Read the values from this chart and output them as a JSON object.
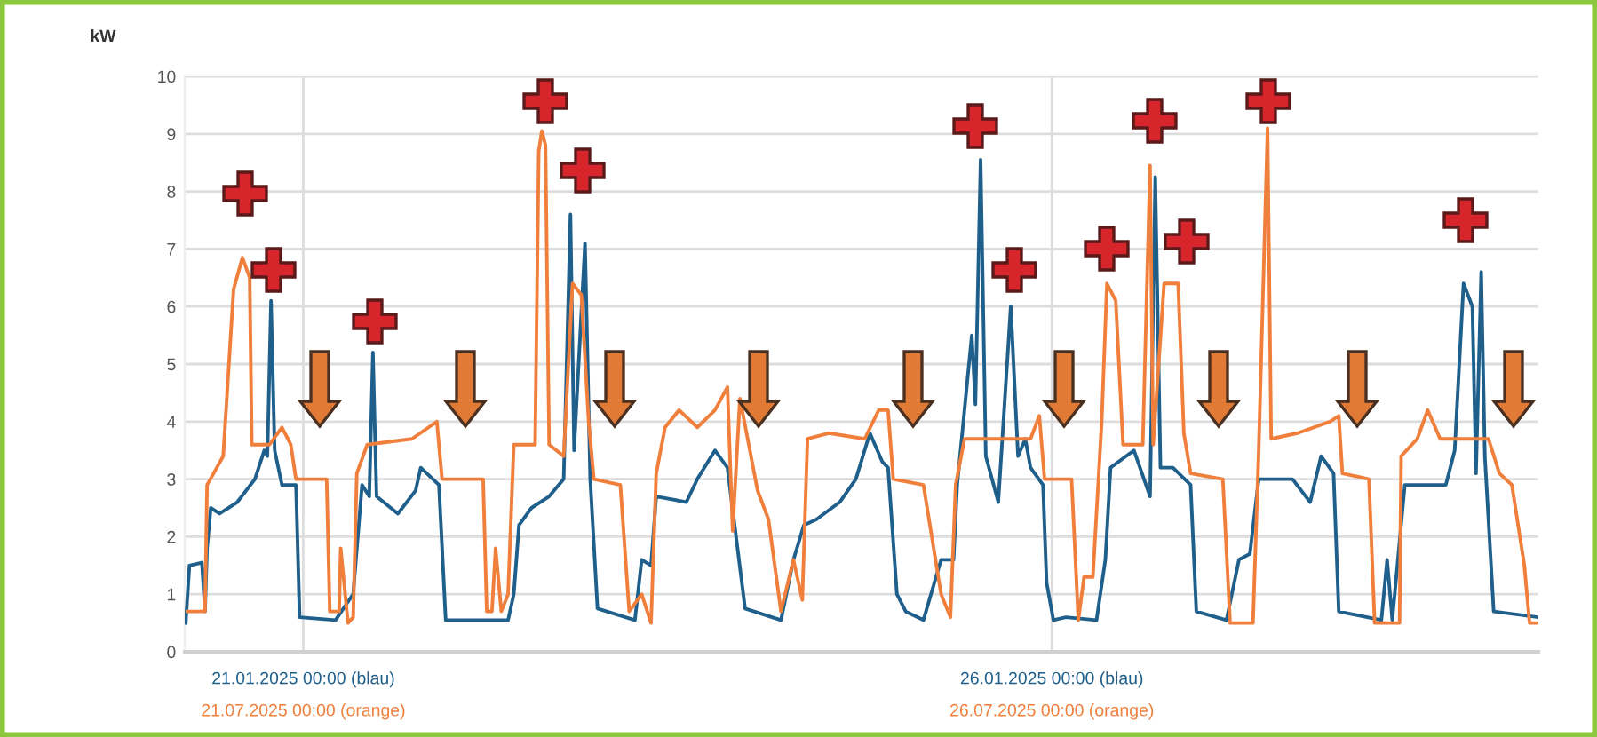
{
  "chart_data": {
    "type": "line",
    "ylabel": "kW",
    "ylim": [
      0,
      10
    ],
    "yticks": [
      0,
      1,
      2,
      3,
      4,
      5,
      6,
      7,
      8,
      9,
      10
    ],
    "xlim": [
      "2025-01-20T05:00",
      "2025-01-29T06:00"
    ],
    "xticks": [
      {
        "value": "2025-01-21T00:00",
        "label": "21.01.2025 00:00 (blau)"
      },
      {
        "value": "2025-01-26T00:00",
        "label": "26.01.2025 00:00 (blau)"
      }
    ],
    "annotations": [
      "21.07.2025 00:00 (orange)",
      "26.07.2025 00:00 (orange)"
    ],
    "grid": true,
    "legend": false,
    "line_style": "solid",
    "marker": "none",
    "series": [
      {
        "color": "#1f5f8b",
        "x": [
          "2025-01-20T05:10",
          "2025-01-20T05:45",
          "2025-01-20T07:45",
          "2025-01-20T08:15",
          "2025-01-20T08:35",
          "2025-01-20T09:10",
          "2025-01-20T10:35",
          "2025-01-20T13:25",
          "2025-01-20T16:15",
          "2025-01-20T17:45",
          "2025-01-20T18:15",
          "2025-01-20T18:50",
          "2025-01-20T19:25",
          "2025-01-20T20:35",
          "2025-01-20T22:50",
          "2025-01-20T23:25",
          "2025-01-21T05:10",
          "2025-01-21T08:00",
          "2025-01-21T09:25",
          "2025-01-21T10:35",
          "2025-01-21T11:10",
          "2025-01-21T11:45",
          "2025-01-21T15:10",
          "2025-01-21T18:00",
          "2025-01-21T18:50",
          "2025-01-21T21:45",
          "2025-01-21T22:50",
          "2025-01-22T08:50",
          "2025-01-22T09:45",
          "2025-01-22T10:35",
          "2025-01-22T12:35",
          "2025-01-22T15:25",
          "2025-01-22T17:45",
          "2025-01-22T18:50",
          "2025-01-22T19:25",
          "2025-01-22T21:10",
          "2025-01-22T22:00",
          "2025-01-22T23:10",
          "2025-01-23T05:10",
          "2025-01-23T06:15",
          "2025-01-23T07:45",
          "2025-01-23T08:35",
          "2025-01-23T13:25",
          "2025-01-23T15:10",
          "2025-01-23T18:00",
          "2025-01-23T20:00",
          "2025-01-23T22:50",
          "2025-01-24T04:35",
          "2025-01-24T06:35",
          "2025-01-24T08:15",
          "2025-01-24T10:15",
          "2025-01-24T14:00",
          "2025-01-24T16:35",
          "2025-01-24T18:50",
          "2025-01-24T20:50",
          "2025-01-24T21:45",
          "2025-01-24T23:10",
          "2025-01-25T00:35",
          "2025-01-25T03:25",
          "2025-01-25T06:15",
          "2025-01-25T08:15",
          "2025-01-25T08:50",
          "2025-01-25T11:10",
          "2025-01-25T11:45",
          "2025-01-25T12:35",
          "2025-01-25T13:25",
          "2025-01-25T15:25",
          "2025-01-25T17:25",
          "2025-01-25T18:35",
          "2025-01-25T19:45",
          "2025-01-25T20:35",
          "2025-01-25T22:35",
          "2025-01-25T23:10",
          "2025-01-26T00:15",
          "2025-01-26T02:15",
          "2025-01-26T07:10",
          "2025-01-26T08:35",
          "2025-01-26T09:25",
          "2025-01-26T13:10",
          "2025-01-26T15:45",
          "2025-01-26T16:35",
          "2025-01-26T17:25",
          "2025-01-26T19:25",
          "2025-01-26T22:15",
          "2025-01-26T23:10",
          "2025-01-27T04:00",
          "2025-01-27T06:00",
          "2025-01-27T07:45",
          "2025-01-27T09:10",
          "2025-01-27T14:35",
          "2025-01-27T17:25",
          "2025-01-27T19:10",
          "2025-01-27T21:10",
          "2025-01-27T22:00",
          "2025-01-28T04:50",
          "2025-01-28T05:45",
          "2025-01-28T06:35",
          "2025-01-28T08:35",
          "2025-01-28T15:10",
          "2025-01-28T16:35",
          "2025-01-28T18:00",
          "2025-01-28T19:25",
          "2025-01-28T20:00",
          "2025-01-28T20:50",
          "2025-01-28T21:25",
          "2025-01-28T22:50",
          "2025-01-29T06:00"
        ],
        "values": [
          0.5,
          1.5,
          1.55,
          0.7,
          1.8,
          2.5,
          2.4,
          2.6,
          3.0,
          3.5,
          3.4,
          6.1,
          3.5,
          2.9,
          2.9,
          0.6,
          0.55,
          1.0,
          2.9,
          2.7,
          5.2,
          2.7,
          2.4,
          2.8,
          3.2,
          2.9,
          0.55,
          0.55,
          1.0,
          2.2,
          2.5,
          2.7,
          3.0,
          7.6,
          3.5,
          7.1,
          3.0,
          0.75,
          0.55,
          1.6,
          1.5,
          2.7,
          2.6,
          3.0,
          3.5,
          3.2,
          0.75,
          0.55,
          1.6,
          2.2,
          2.3,
          2.6,
          3.0,
          3.8,
          3.3,
          3.2,
          1.0,
          0.7,
          0.55,
          1.6,
          1.6,
          2.9,
          5.5,
          4.3,
          8.55,
          3.4,
          2.6,
          6.0,
          3.4,
          3.7,
          3.2,
          2.9,
          1.2,
          0.55,
          0.6,
          0.55,
          1.6,
          3.2,
          3.5,
          2.7,
          8.25,
          3.2,
          3.2,
          2.9,
          0.7,
          0.55,
          1.6,
          1.7,
          3.0,
          3.0,
          2.6,
          3.4,
          3.1,
          0.7,
          0.55,
          1.6,
          0.55,
          2.9,
          2.9,
          3.5,
          6.4,
          6.0,
          3.1,
          6.6,
          3.4,
          0.7,
          0.6
        ]
      },
      {
        "color": "#f07f3c",
        "x": [
          "2025-01-20T05:25",
          "2025-01-20T08:15",
          "2025-01-20T08:35",
          "2025-01-20T11:10",
          "2025-01-20T12:50",
          "2025-01-20T14:15",
          "2025-01-20T15:25",
          "2025-01-20T15:45",
          "2025-01-20T18:35",
          "2025-01-20T20:35",
          "2025-01-20T22:00",
          "2025-01-20T22:50",
          "2025-01-21T03:45",
          "2025-01-21T04:15",
          "2025-01-21T05:45",
          "2025-01-21T06:00",
          "2025-01-21T07:10",
          "2025-01-21T08:00",
          "2025-01-21T08:35",
          "2025-01-21T10:15",
          "2025-01-21T17:25",
          "2025-01-21T21:25",
          "2025-01-21T22:15",
          "2025-01-22T04:50",
          "2025-01-22T05:25",
          "2025-01-22T06:15",
          "2025-01-22T06:50",
          "2025-01-22T07:45",
          "2025-01-22T08:50",
          "2025-01-22T09:45",
          "2025-01-22T13:10",
          "2025-01-22T13:45",
          "2025-01-22T14:15",
          "2025-01-22T14:50",
          "2025-01-22T15:25",
          "2025-01-22T17:45",
          "2025-01-22T19:10",
          "2025-01-22T20:35",
          "2025-01-22T21:45",
          "2025-01-22T22:35",
          "2025-01-23T02:50",
          "2025-01-23T04:15",
          "2025-01-23T06:15",
          "2025-01-23T07:45",
          "2025-01-23T08:35",
          "2025-01-23T10:00",
          "2025-01-23T12:15",
          "2025-01-23T15:10",
          "2025-01-23T18:00",
          "2025-01-23T20:00",
          "2025-01-23T20:50",
          "2025-01-23T22:00",
          "2025-01-23T23:25",
          "2025-01-24T00:50",
          "2025-01-24T02:35",
          "2025-01-24T04:35",
          "2025-01-24T06:35",
          "2025-01-24T08:00",
          "2025-01-24T08:50",
          "2025-01-24T12:15",
          "2025-01-24T18:00",
          "2025-01-24T20:15",
          "2025-01-24T21:45",
          "2025-01-24T22:35",
          "2025-01-25T03:25",
          "2025-01-25T06:15",
          "2025-01-25T07:45",
          "2025-01-25T08:35",
          "2025-01-25T10:00",
          "2025-01-25T20:35",
          "2025-01-25T22:00",
          "2025-01-25T22:50",
          "2025-01-26T03:10",
          "2025-01-26T04:15",
          "2025-01-26T05:10",
          "2025-01-26T06:35",
          "2025-01-26T08:00",
          "2025-01-26T08:50",
          "2025-01-26T10:15",
          "2025-01-26T11:25",
          "2025-01-26T14:35",
          "2025-01-26T15:45",
          "2025-01-26T16:15",
          "2025-01-26T18:00",
          "2025-01-26T20:15",
          "2025-01-26T21:10",
          "2025-01-26T22:15",
          "2025-01-27T03:25",
          "2025-01-27T04:35",
          "2025-01-27T08:15",
          "2025-01-27T09:10",
          "2025-01-27T10:35",
          "2025-01-27T11:10",
          "2025-01-27T15:25",
          "2025-01-27T20:35",
          "2025-01-27T22:00",
          "2025-01-27T22:35",
          "2025-01-28T02:50",
          "2025-01-28T03:45",
          "2025-01-28T07:45",
          "2025-01-28T08:00",
          "2025-01-28T10:35",
          "2025-01-28T12:15",
          "2025-01-28T14:15",
          "2025-01-28T22:00",
          "2025-01-28T23:45",
          "2025-01-29T01:45",
          "2025-01-29T03:45",
          "2025-01-29T04:35",
          "2025-01-29T06:00"
        ],
        "values": [
          0.7,
          0.7,
          2.9,
          3.4,
          6.3,
          6.85,
          6.5,
          3.6,
          3.6,
          3.9,
          3.6,
          3.0,
          3.0,
          0.7,
          0.7,
          1.8,
          0.5,
          0.6,
          3.1,
          3.6,
          3.7,
          4.0,
          3.0,
          3.0,
          0.7,
          0.7,
          1.8,
          0.7,
          1.0,
          3.6,
          3.6,
          8.7,
          9.05,
          8.8,
          3.6,
          3.4,
          6.4,
          6.2,
          4.0,
          3.0,
          2.9,
          0.7,
          1.0,
          0.5,
          3.1,
          3.9,
          4.2,
          3.9,
          4.2,
          4.6,
          2.1,
          4.4,
          3.6,
          2.8,
          2.3,
          0.7,
          1.6,
          0.9,
          3.7,
          3.8,
          3.7,
          4.2,
          4.2,
          3.0,
          2.9,
          1.0,
          0.6,
          2.9,
          3.7,
          3.7,
          4.1,
          3.0,
          3.0,
          0.55,
          1.3,
          1.3,
          4.0,
          6.4,
          6.1,
          3.6,
          3.6,
          8.45,
          3.6,
          6.4,
          6.4,
          3.8,
          3.1,
          3.0,
          0.5,
          0.5,
          3.5,
          9.1,
          3.7,
          3.8,
          4.0,
          4.1,
          3.1,
          3.0,
          0.5,
          0.5,
          3.4,
          3.7,
          4.2,
          3.7,
          3.7,
          3.1,
          2.9,
          1.5,
          0.5,
          0.5
        ]
      }
    ]
  }
}
